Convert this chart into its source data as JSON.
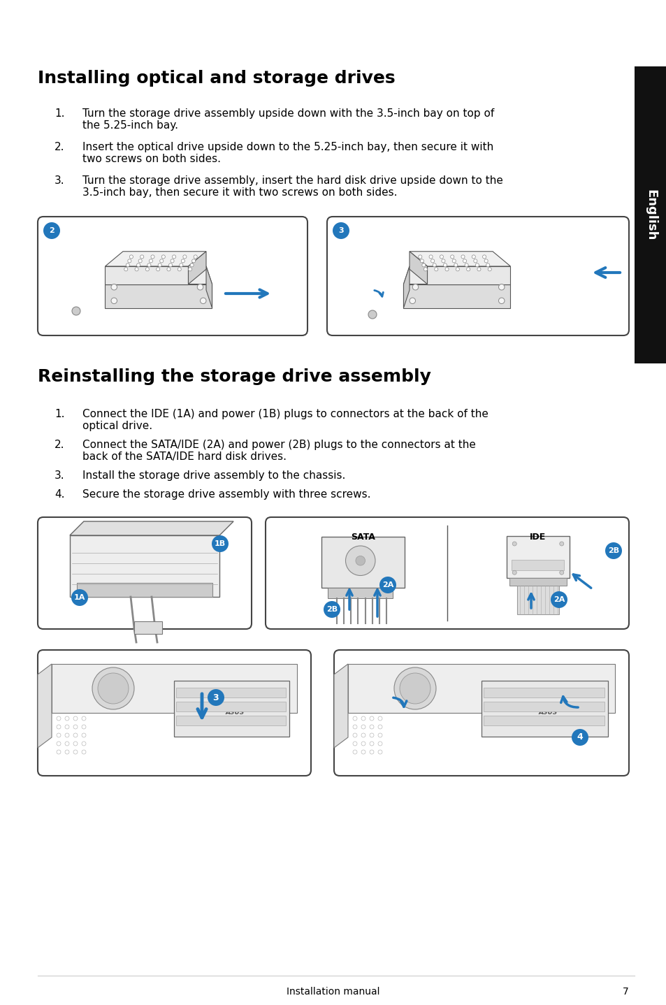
{
  "bg_color": "#ffffff",
  "text_color": "#000000",
  "sidebar_color": "#111111",
  "circle_color": "#2277bb",
  "title1": "Installing optical and storage drives",
  "title2": "Reinstalling the storage drive assembly",
  "s1_items": [
    [
      "Turn the storage drive assembly upside down with the 3.5-inch bay on top of",
      "the 5.25-inch bay."
    ],
    [
      "Insert the optical drive upside down to the 5.25-inch bay, then secure it with",
      "two screws on both sides."
    ],
    [
      "Turn the storage drive assembly, insert the hard disk drive upside down to the",
      "3.5-inch bay, then secure it with two screws on both sides."
    ]
  ],
  "s2_items": [
    [
      "Connect the IDE (1A) and power (1B) plugs to connectors at the back of the",
      "optical drive."
    ],
    [
      "Connect the SATA/IDE (2A) and power (2B) plugs to the connectors at the",
      "back of the SATA/IDE hard disk drives."
    ],
    [
      "Install the storage drive assembly to the chassis."
    ],
    [
      "Secure the storage drive assembly with three screws."
    ]
  ],
  "footer_text": "Installation manual",
  "footer_page": "7",
  "title1_fs": 18,
  "title2_fs": 18,
  "body_fs": 11,
  "num_fs": 11,
  "circle_r": 0.013,
  "circle_fs": 8
}
